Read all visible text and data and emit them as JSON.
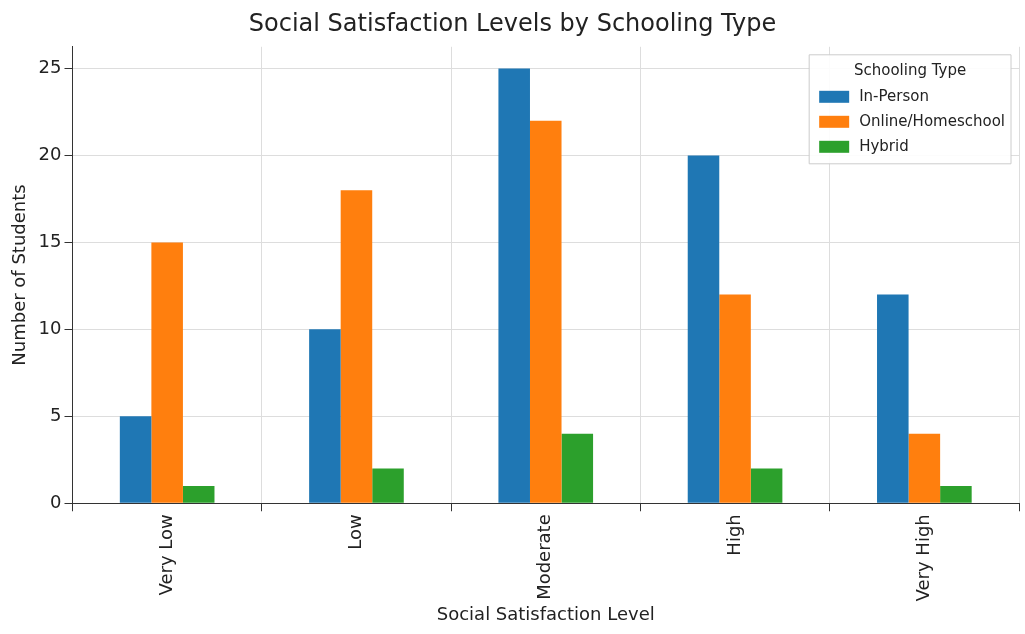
{
  "chart_data": {
    "type": "bar",
    "title": "Social Satisfaction Levels by Schooling Type",
    "xlabel": "Social Satisfaction Level",
    "ylabel": "Number of Students",
    "legend_title": "Schooling Type",
    "categories": [
      "Very Low",
      "Low",
      "Moderate",
      "High",
      "Very High"
    ],
    "series": [
      {
        "name": "In-Person",
        "color": "#1f77b4",
        "values": [
          5,
          10,
          25,
          20,
          12
        ]
      },
      {
        "name": "Online/Homeschool",
        "color": "#ff7f0e",
        "values": [
          15,
          18,
          22,
          12,
          4
        ]
      },
      {
        "name": "Hybrid",
        "color": "#2ca02c",
        "values": [
          1,
          2,
          4,
          2,
          1
        ]
      }
    ],
    "ylim": [
      0,
      26.25
    ],
    "yticks": [
      0,
      5,
      10,
      15,
      20,
      25
    ],
    "grid": true,
    "legend": "top right"
  }
}
